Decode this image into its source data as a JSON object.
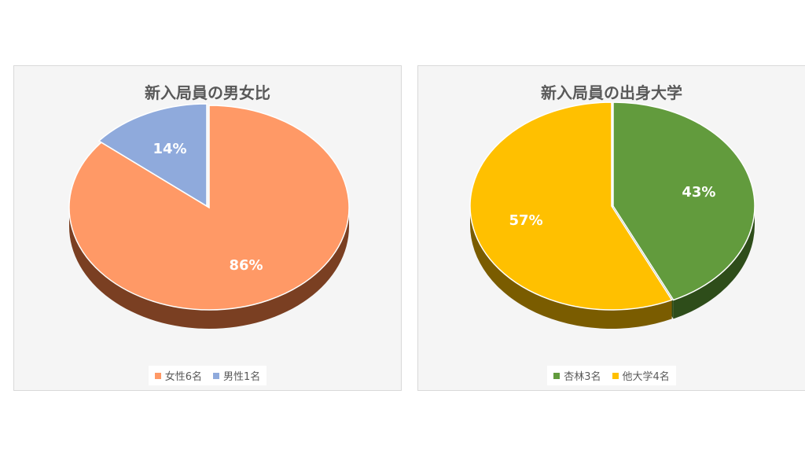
{
  "chart_data": [
    {
      "type": "pie",
      "title": "新入局員の男女比",
      "categories": [
        "女性6名",
        "男性1名"
      ],
      "values": [
        86,
        14
      ],
      "labels": [
        "86%",
        "14%"
      ],
      "colors": [
        "#ff9966",
        "#8faadc"
      ],
      "side_colors": [
        "#7a3f22",
        "#3e5585"
      ],
      "legend_position": "bottom"
    },
    {
      "type": "pie",
      "title": "新入局員の出身大学",
      "categories": [
        "杏林3名",
        "他大学4名"
      ],
      "values": [
        43,
        57
      ],
      "labels": [
        "43%",
        "57%"
      ],
      "colors": [
        "#629b3d",
        "#ffc000"
      ],
      "side_colors": [
        "#2e4d1a",
        "#7a5c00"
      ],
      "legend_position": "bottom"
    }
  ]
}
